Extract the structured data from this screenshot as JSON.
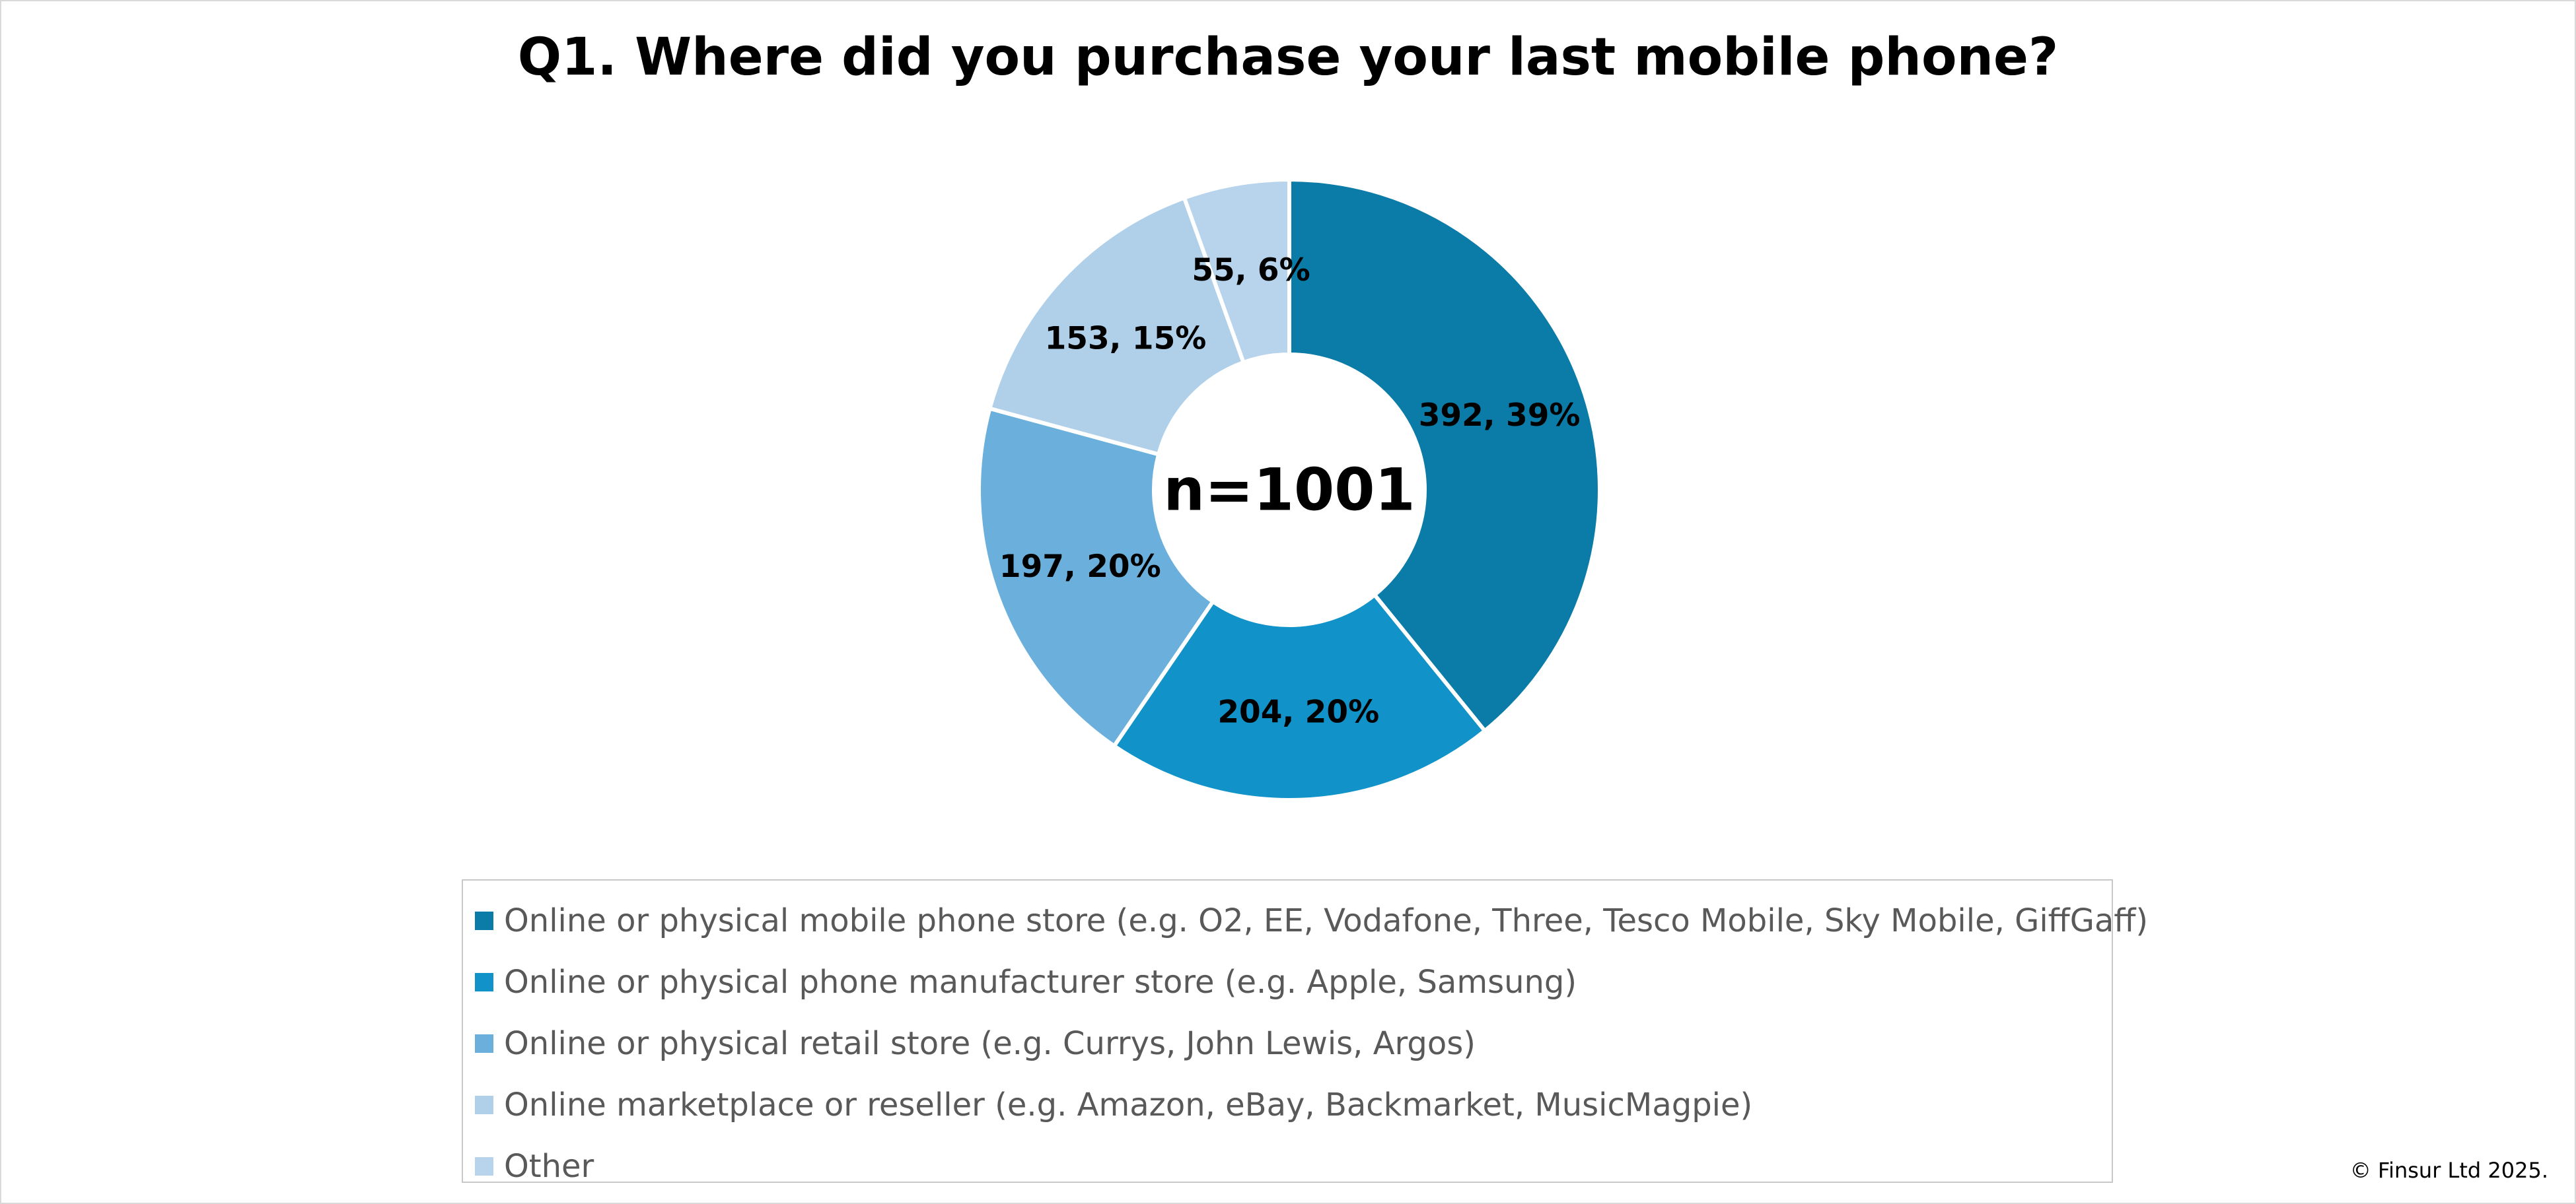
{
  "chart_data": {
    "type": "pie",
    "variant": "donut",
    "title": "Q1. Where did you purchase your last mobile phone?",
    "center_label": "n=1001",
    "slices": [
      {
        "name": "Online or physical mobile phone store (e.g. O2, EE, Vodafone, Three, Tesco Mobile, Sky Mobile, GiffGaff)",
        "value": 392,
        "percent": 39,
        "label": "392, 39%",
        "color": "#0B7BA8"
      },
      {
        "name": "Online or physical phone manufacturer store (e.g. Apple, Samsung)",
        "value": 204,
        "percent": 20,
        "label": "204, 20%",
        "color": "#1192C8"
      },
      {
        "name": "Online or physical retail store (e.g. Currys, John Lewis, Argos)",
        "value": 197,
        "percent": 20,
        "label": "197, 20%",
        "color": "#6BB0DC"
      },
      {
        "name": "Online marketplace or reseller (e.g. Amazon, eBay, Backmarket, MusicMagpie)",
        "value": 153,
        "percent": 15,
        "label": "153, 15%",
        "color": "#B0D0EA"
      },
      {
        "name": "Other",
        "value": 55,
        "percent": 6,
        "label": "55, 6%",
        "color": "#B8D4EC"
      }
    ],
    "legend_position": "bottom"
  },
  "footer": {
    "copyright": "© Finsur Ltd 2025."
  }
}
